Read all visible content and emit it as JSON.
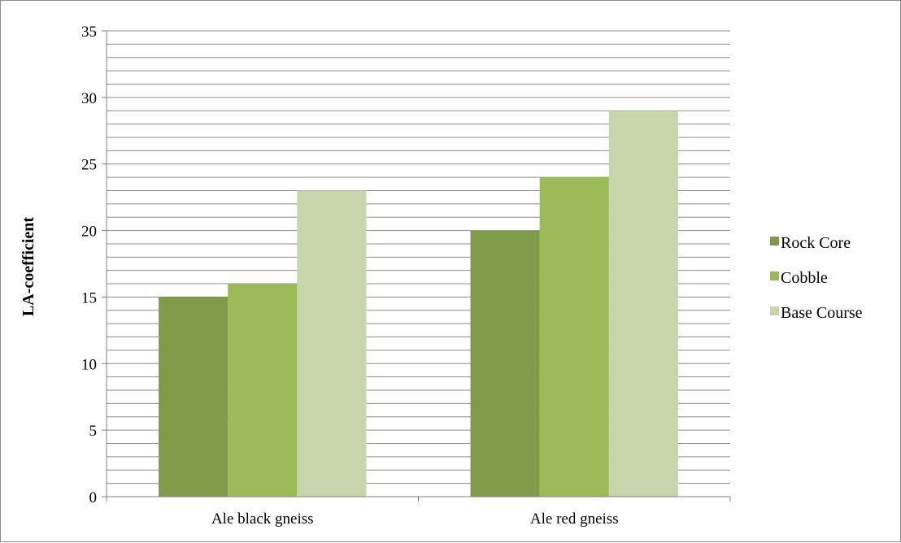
{
  "chart_data": {
    "type": "bar",
    "title": "",
    "xlabel": "",
    "ylabel": "LA-coefficient",
    "categories": [
      "Ale black gneiss",
      "Ale red gneiss"
    ],
    "series": [
      {
        "name": "Rock Core",
        "values": [
          15,
          20
        ],
        "color": "#7f9b49"
      },
      {
        "name": "Cobble",
        "values": [
          16,
          24
        ],
        "color": "#9bbb59"
      },
      {
        "name": "Base Course",
        "values": [
          23,
          29
        ],
        "color": "#c6d6aa"
      }
    ],
    "ylim": [
      0,
      35
    ],
    "major_ticks": [
      0,
      5,
      10,
      15,
      20,
      25,
      30,
      35
    ],
    "minor_step": 1,
    "grid": true,
    "legend_position": "right"
  }
}
